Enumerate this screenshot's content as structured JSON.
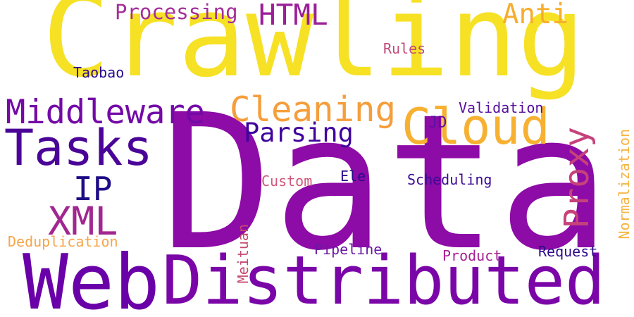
{
  "words": [
    {
      "id": "word-data",
      "text": "Data",
      "color": "#8d0ba6"
    },
    {
      "id": "word-crawling",
      "text": "Crawling",
      "color": "#f6e125"
    },
    {
      "id": "word-distributed",
      "text": "Distributed",
      "color": "#7b06a8"
    },
    {
      "id": "word-web",
      "text": "Web",
      "color": "#6a00a8"
    },
    {
      "id": "word-tasks",
      "text": "Tasks",
      "color": "#4a0497"
    },
    {
      "id": "word-cloud",
      "text": "Cloud",
      "color": "#f7b132"
    },
    {
      "id": "word-middleware",
      "text": "Middleware",
      "color": "#730aa6"
    },
    {
      "id": "word-cleaning",
      "text": "Cleaning",
      "color": "#f59e3c"
    },
    {
      "id": "word-parsing",
      "text": "Parsing",
      "color": "#3e049c"
    },
    {
      "id": "word-proxy",
      "text": "Proxy",
      "color": "#c6427a"
    },
    {
      "id": "word-xml",
      "text": "XML",
      "color": "#a12690"
    },
    {
      "id": "word-ip",
      "text": "IP",
      "color": "#1e0c86"
    },
    {
      "id": "word-html",
      "text": "HTML",
      "color": "#9b1e98"
    },
    {
      "id": "word-processing",
      "text": "Processing",
      "color": "#a3309a"
    },
    {
      "id": "word-anti",
      "text": "Anti",
      "color": "#f7ad2d"
    },
    {
      "id": "word-rules",
      "text": "Rules",
      "color": "#c04a79"
    },
    {
      "id": "word-taobao",
      "text": "Taobao",
      "color": "#2b0b90"
    },
    {
      "id": "word-validation",
      "text": "Validation",
      "color": "#550f9c"
    },
    {
      "id": "word-jd",
      "text": "JD",
      "color": "#5c119f"
    },
    {
      "id": "word-normalization",
      "text": "Normalization",
      "color": "#f6b443"
    },
    {
      "id": "word-custom",
      "text": "Custom",
      "color": "#d0587a"
    },
    {
      "id": "word-ele",
      "text": "Ele",
      "color": "#2a0a8e"
    },
    {
      "id": "word-scheduling",
      "text": "Scheduling",
      "color": "#3d0a95"
    },
    {
      "id": "word-deduplication",
      "text": "Deduplication",
      "color": "#f5a54a"
    },
    {
      "id": "word-meituan",
      "text": "Meituan",
      "color": "#c5496f"
    },
    {
      "id": "word-pipeline",
      "text": "Pipeline",
      "color": "#6b18a3"
    },
    {
      "id": "word-product",
      "text": "Product",
      "color": "#a52291"
    },
    {
      "id": "word-request",
      "text": "Request",
      "color": "#2c0a8a"
    }
  ]
}
